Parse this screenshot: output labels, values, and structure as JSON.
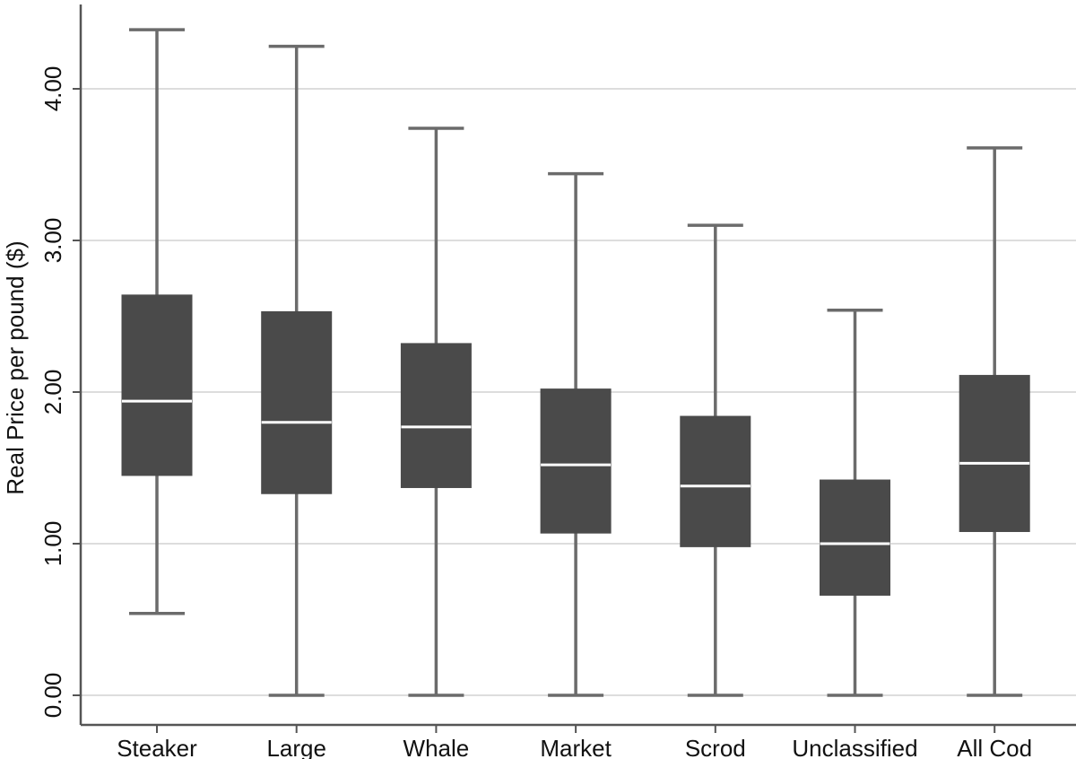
{
  "chart_data": {
    "type": "box",
    "title": "",
    "xlabel": "",
    "ylabel": "Real Price per pound ($)",
    "ylim": [
      0,
      4.5
    ],
    "grid": true,
    "yticks": [
      {
        "value": 0,
        "label": "0.00"
      },
      {
        "value": 1,
        "label": "1.00"
      },
      {
        "value": 2,
        "label": "2.00"
      },
      {
        "value": 3,
        "label": "3.00"
      },
      {
        "value": 4,
        "label": "4.00"
      }
    ],
    "categories": [
      "Steaker",
      "Large",
      "Whale",
      "Market",
      "Scrod",
      "Unclassified",
      "All Cod"
    ],
    "boxes": [
      {
        "category": "Steaker",
        "whisker_low": 0.54,
        "q1": 1.45,
        "median": 1.94,
        "q3": 2.64,
        "whisker_high": 4.39
      },
      {
        "category": "Large",
        "whisker_low": 0.0,
        "q1": 1.33,
        "median": 1.8,
        "q3": 2.53,
        "whisker_high": 4.28
      },
      {
        "category": "Whale",
        "whisker_low": 0.0,
        "q1": 1.37,
        "median": 1.77,
        "q3": 2.32,
        "whisker_high": 3.74
      },
      {
        "category": "Market",
        "whisker_low": 0.0,
        "q1": 1.07,
        "median": 1.52,
        "q3": 2.02,
        "whisker_high": 3.44
      },
      {
        "category": "Scrod",
        "whisker_low": 0.0,
        "q1": 0.98,
        "median": 1.38,
        "q3": 1.84,
        "whisker_high": 3.1
      },
      {
        "category": "Unclassified",
        "whisker_low": 0.0,
        "q1": 0.66,
        "median": 1.0,
        "q3": 1.42,
        "whisker_high": 2.54
      },
      {
        "category": "All Cod",
        "whisker_low": 0.0,
        "q1": 1.08,
        "median": 1.53,
        "q3": 2.11,
        "whisker_high": 3.61
      }
    ]
  }
}
